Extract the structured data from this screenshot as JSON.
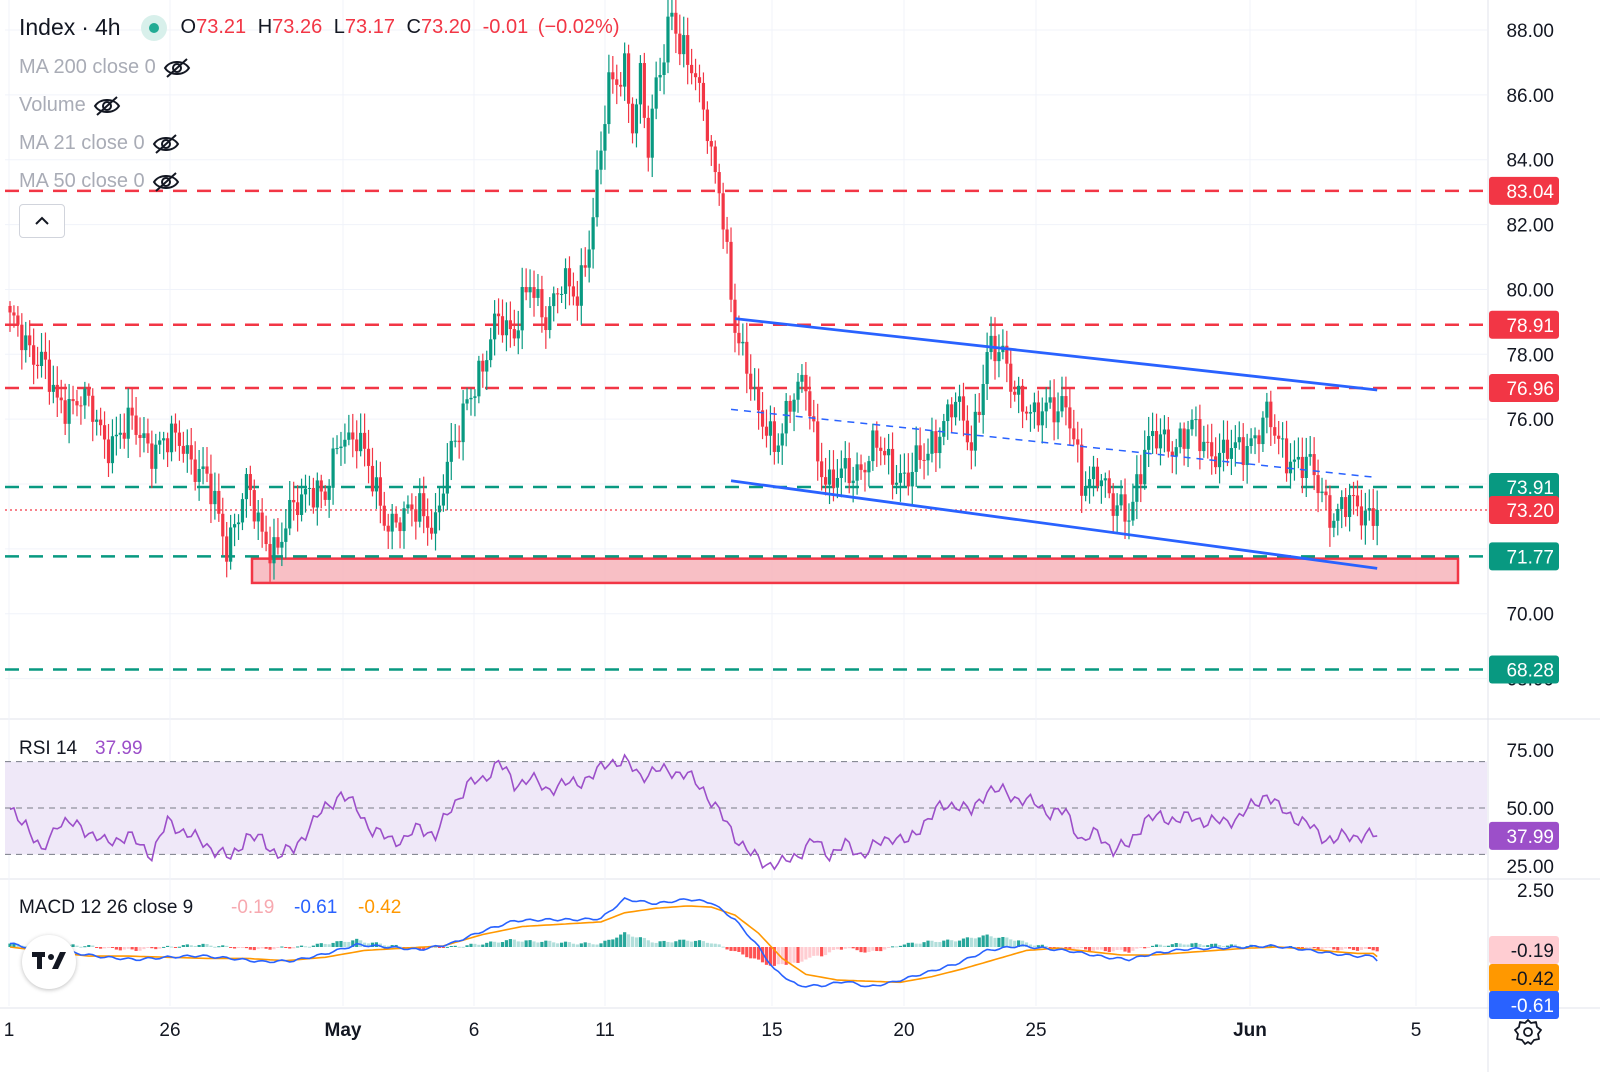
{
  "header": {
    "symbol": "Index",
    "separator": "·",
    "interval": "4h",
    "open_label": "O",
    "open": "73.21",
    "high_label": "H",
    "high": "73.26",
    "low_label": "L",
    "low": "73.17",
    "close_label": "C",
    "close": "73.20",
    "change": "-0.01",
    "change_pct": "(−0.02%)"
  },
  "indicators_hidden": [
    {
      "label": "MA 200 close 0",
      "icon": "eye-off-icon"
    },
    {
      "label": "Volume",
      "icon": "eye-off-icon"
    },
    {
      "label": "MA 21 close 0",
      "icon": "eye-off-icon"
    },
    {
      "label": "MA 50 close 0",
      "icon": "eye-off-icon"
    }
  ],
  "colors": {
    "up": "#089981",
    "down": "#f23645",
    "level_red": "#f23645",
    "level_green": "#089981",
    "trend": "#2962ff",
    "zone_fill": "#f7b4bb",
    "rsi": "#9c4fc9",
    "rsi_band": "#efe8f8",
    "macd": "#2962ff",
    "signal": "#ff9800",
    "hist_up_strong": "#26a69a",
    "hist_up_weak": "#b2dfdb",
    "hist_down_strong": "#ff5252",
    "hist_down_weak": "#ffcdd2"
  },
  "chart_data": [
    {
      "type": "candlestick",
      "title": "Index · 4h",
      "ylim": [
        67.8,
        88.8
      ],
      "y_ticks": [
        "88.00",
        "86.00",
        "84.00",
        "82.00",
        "80.00",
        "78.00",
        "76.00",
        "74.00",
        "72.00",
        "70.00",
        "68.00"
      ],
      "x_ticks": [
        "1",
        "26",
        "May",
        "6",
        "11",
        "15",
        "20",
        "25",
        "Jun",
        "5"
      ],
      "horizontal_levels": [
        {
          "value": 83.04,
          "label": "83.04",
          "style": "dashed",
          "color": "red"
        },
        {
          "value": 78.91,
          "label": "78.91",
          "style": "dashed",
          "color": "red"
        },
        {
          "value": 76.96,
          "label": "76.96",
          "style": "dashed",
          "color": "red"
        },
        {
          "value": 73.91,
          "label": "73.91",
          "style": "dashed",
          "color": "green"
        },
        {
          "value": 73.2,
          "label": "73.20",
          "style": "dotted",
          "color": "red"
        },
        {
          "value": 71.77,
          "label": "71.77",
          "style": "dashed",
          "color": "green"
        },
        {
          "value": 68.28,
          "label": "68.28",
          "style": "dashed",
          "color": "green"
        }
      ],
      "support_zone": {
        "from": 70.95,
        "to": 71.7
      },
      "trendlines": [
        {
          "style": "solid",
          "from": {
            "x_index": 184,
            "y": 79.1
          },
          "to": {
            "x_index": 347,
            "y": 76.9
          }
        },
        {
          "style": "dashed",
          "from": {
            "x_index": 183,
            "y": 76.3
          },
          "to": {
            "x_index": 347,
            "y": 74.2
          }
        },
        {
          "style": "solid",
          "from": {
            "x_index": 183,
            "y": 74.1
          },
          "to": {
            "x_index": 347,
            "y": 71.4
          }
        }
      ],
      "anchors": [
        [
          0,
          78.9
        ],
        [
          8,
          77.9
        ],
        [
          12,
          76.3
        ],
        [
          18,
          76.8
        ],
        [
          24,
          75.3
        ],
        [
          30,
          75.8
        ],
        [
          36,
          75.2
        ],
        [
          44,
          75.3
        ],
        [
          50,
          74.0
        ],
        [
          55,
          72.2
        ],
        [
          60,
          73.8
        ],
        [
          64,
          72.5
        ],
        [
          68,
          72.0
        ],
        [
          72,
          73.2
        ],
        [
          76,
          74.1
        ],
        [
          80,
          73.4
        ],
        [
          84,
          75.6
        ],
        [
          88,
          75.5
        ],
        [
          92,
          74.0
        ],
        [
          96,
          72.9
        ],
        [
          100,
          72.8
        ],
        [
          104,
          73.4
        ],
        [
          108,
          72.7
        ],
        [
          112,
          74.9
        ],
        [
          116,
          76.8
        ],
        [
          120,
          77.3
        ],
        [
          124,
          79.4
        ],
        [
          128,
          78.6
        ],
        [
          132,
          80.1
        ],
        [
          136,
          79.3
        ],
        [
          140,
          80.0
        ],
        [
          144,
          79.9
        ],
        [
          148,
          82.2
        ],
        [
          152,
          86.2
        ],
        [
          156,
          87.0
        ],
        [
          158,
          85.0
        ],
        [
          160,
          86.3
        ],
        [
          162,
          84.2
        ],
        [
          164,
          86.5
        ],
        [
          168,
          88.6
        ],
        [
          170,
          87.2
        ],
        [
          173,
          86.9
        ],
        [
          176,
          86.0
        ],
        [
          178,
          84.0
        ],
        [
          180,
          82.9
        ],
        [
          182,
          80.8
        ],
        [
          184,
          79.0
        ],
        [
          187,
          77.8
        ],
        [
          190,
          75.9
        ],
        [
          194,
          75.3
        ],
        [
          198,
          76.5
        ],
        [
          202,
          77.0
        ],
        [
          205,
          75.0
        ],
        [
          208,
          73.9
        ],
        [
          212,
          74.3
        ],
        [
          216,
          74.6
        ],
        [
          220,
          75.1
        ],
        [
          224,
          74.5
        ],
        [
          228,
          74.2
        ],
        [
          232,
          74.8
        ],
        [
          236,
          75.8
        ],
        [
          240,
          76.4
        ],
        [
          244,
          75.3
        ],
        [
          248,
          78.0
        ],
        [
          252,
          77.9
        ],
        [
          256,
          76.8
        ],
        [
          260,
          75.8
        ],
        [
          264,
          76.6
        ],
        [
          268,
          76.4
        ],
        [
          272,
          73.9
        ],
        [
          276,
          74.6
        ],
        [
          280,
          73.1
        ],
        [
          284,
          73.2
        ],
        [
          288,
          75.0
        ],
        [
          292,
          75.4
        ],
        [
          296,
          75.3
        ],
        [
          300,
          75.6
        ],
        [
          304,
          75.2
        ],
        [
          308,
          74.9
        ],
        [
          312,
          75.0
        ],
        [
          316,
          75.6
        ],
        [
          319,
          76.0
        ],
        [
          322,
          75.2
        ],
        [
          326,
          74.8
        ],
        [
          330,
          74.4
        ],
        [
          333,
          73.7
        ],
        [
          336,
          73.1
        ],
        [
          339,
          73.3
        ],
        [
          342,
          73.2
        ]
      ]
    },
    {
      "type": "line",
      "title": "RSI 14",
      "series": [
        {
          "name": "RSI",
          "last_value": 37.99
        }
      ],
      "ylim": [
        25,
        75
      ],
      "y_ticks": [
        "75.00",
        "50.00",
        "25.00"
      ],
      "bands": [
        70,
        50,
        30
      ],
      "last_value_label": "37.99",
      "anchors": [
        [
          0,
          48
        ],
        [
          4,
          44
        ],
        [
          8,
          30
        ],
        [
          12,
          44
        ],
        [
          18,
          42
        ],
        [
          24,
          35
        ],
        [
          30,
          38
        ],
        [
          36,
          30
        ],
        [
          40,
          44
        ],
        [
          46,
          38
        ],
        [
          52,
          32
        ],
        [
          56,
          28
        ],
        [
          60,
          38
        ],
        [
          64,
          36
        ],
        [
          68,
          30
        ],
        [
          72,
          32
        ],
        [
          76,
          42
        ],
        [
          80,
          50
        ],
        [
          84,
          56
        ],
        [
          88,
          50
        ],
        [
          92,
          40
        ],
        [
          96,
          37
        ],
        [
          100,
          36
        ],
        [
          104,
          42
        ],
        [
          108,
          38
        ],
        [
          112,
          50
        ],
        [
          116,
          60
        ],
        [
          120,
          62
        ],
        [
          124,
          70
        ],
        [
          128,
          60
        ],
        [
          132,
          63
        ],
        [
          136,
          58
        ],
        [
          140,
          60
        ],
        [
          144,
          61
        ],
        [
          148,
          64
        ],
        [
          152,
          70
        ],
        [
          156,
          70
        ],
        [
          160,
          64
        ],
        [
          164,
          66
        ],
        [
          168,
          66
        ],
        [
          172,
          64
        ],
        [
          176,
          58
        ],
        [
          180,
          48
        ],
        [
          184,
          38
        ],
        [
          188,
          30
        ],
        [
          192,
          26
        ],
        [
          196,
          26
        ],
        [
          200,
          30
        ],
        [
          204,
          36
        ],
        [
          208,
          30
        ],
        [
          212,
          34
        ],
        [
          216,
          30
        ],
        [
          220,
          34
        ],
        [
          224,
          38
        ],
        [
          228,
          35
        ],
        [
          232,
          44
        ],
        [
          236,
          50
        ],
        [
          240,
          52
        ],
        [
          244,
          48
        ],
        [
          248,
          58
        ],
        [
          252,
          57
        ],
        [
          256,
          54
        ],
        [
          260,
          52
        ],
        [
          264,
          48
        ],
        [
          268,
          48
        ],
        [
          272,
          36
        ],
        [
          276,
          39
        ],
        [
          280,
          32
        ],
        [
          284,
          34
        ],
        [
          288,
          45
        ],
        [
          292,
          46
        ],
        [
          296,
          45
        ],
        [
          300,
          46
        ],
        [
          304,
          44
        ],
        [
          308,
          44
        ],
        [
          312,
          46
        ],
        [
          316,
          52
        ],
        [
          319,
          56
        ],
        [
          322,
          50
        ],
        [
          326,
          46
        ],
        [
          330,
          42
        ],
        [
          333,
          38
        ],
        [
          336,
          36
        ],
        [
          339,
          38
        ],
        [
          342,
          38
        ]
      ]
    },
    {
      "type": "line+histogram",
      "title": "MACD 12 26 close 9",
      "values_shown": {
        "histogram": "-0.19",
        "macd": "-0.61",
        "signal": "-0.42"
      },
      "ylim": [
        -1.9,
        2.5
      ],
      "y_ticks": [
        "2.50"
      ],
      "series": [
        {
          "name": "MACD",
          "last_value": -0.61
        },
        {
          "name": "Signal",
          "last_value": -0.42
        },
        {
          "name": "Histogram",
          "last_value": -0.19
        }
      ],
      "macd_anchors": [
        [
          0,
          0.15
        ],
        [
          8,
          -0.15
        ],
        [
          16,
          -0.25
        ],
        [
          24,
          -0.45
        ],
        [
          32,
          -0.55
        ],
        [
          40,
          -0.45
        ],
        [
          48,
          -0.38
        ],
        [
          56,
          -0.5
        ],
        [
          64,
          -0.65
        ],
        [
          72,
          -0.6
        ],
        [
          80,
          -0.3
        ],
        [
          88,
          0.1
        ],
        [
          96,
          0.0
        ],
        [
          104,
          -0.12
        ],
        [
          112,
          0.15
        ],
        [
          120,
          0.7
        ],
        [
          128,
          1.15
        ],
        [
          136,
          1.2
        ],
        [
          144,
          1.2
        ],
        [
          150,
          1.25
        ],
        [
          156,
          2.1
        ],
        [
          164,
          1.9
        ],
        [
          172,
          2.1
        ],
        [
          178,
          1.95
        ],
        [
          184,
          1.2
        ],
        [
          190,
          0.0
        ],
        [
          194,
          -1.0
        ],
        [
          200,
          -1.7
        ],
        [
          206,
          -1.7
        ],
        [
          212,
          -1.5
        ],
        [
          218,
          -1.75
        ],
        [
          224,
          -1.55
        ],
        [
          232,
          -1.15
        ],
        [
          240,
          -0.75
        ],
        [
          248,
          -0.15
        ],
        [
          256,
          0.05
        ],
        [
          262,
          -0.05
        ],
        [
          270,
          -0.2
        ],
        [
          278,
          -0.45
        ],
        [
          284,
          -0.55
        ],
        [
          290,
          -0.3
        ],
        [
          298,
          -0.1
        ],
        [
          306,
          -0.05
        ],
        [
          314,
          0.0
        ],
        [
          320,
          0.05
        ],
        [
          328,
          -0.1
        ],
        [
          336,
          -0.3
        ],
        [
          342,
          -0.4
        ]
      ],
      "signal_anchors": [
        [
          0,
          0.0
        ],
        [
          10,
          -0.2
        ],
        [
          20,
          -0.4
        ],
        [
          30,
          -0.4
        ],
        [
          40,
          -0.45
        ],
        [
          50,
          -0.5
        ],
        [
          60,
          -0.5
        ],
        [
          70,
          -0.6
        ],
        [
          80,
          -0.45
        ],
        [
          90,
          -0.15
        ],
        [
          100,
          -0.05
        ],
        [
          110,
          0.05
        ],
        [
          120,
          0.55
        ],
        [
          130,
          0.9
        ],
        [
          140,
          1.0
        ],
        [
          150,
          1.1
        ],
        [
          156,
          1.5
        ],
        [
          164,
          1.7
        ],
        [
          172,
          1.8
        ],
        [
          178,
          1.75
        ],
        [
          184,
          1.4
        ],
        [
          190,
          0.6
        ],
        [
          196,
          -0.5
        ],
        [
          202,
          -1.2
        ],
        [
          210,
          -1.45
        ],
        [
          218,
          -1.5
        ],
        [
          226,
          -1.55
        ],
        [
          234,
          -1.3
        ],
        [
          242,
          -0.95
        ],
        [
          250,
          -0.55
        ],
        [
          258,
          -0.15
        ],
        [
          266,
          -0.05
        ],
        [
          274,
          -0.2
        ],
        [
          282,
          -0.35
        ],
        [
          290,
          -0.35
        ],
        [
          298,
          -0.25
        ],
        [
          306,
          -0.15
        ],
        [
          314,
          -0.05
        ],
        [
          322,
          0.0
        ],
        [
          330,
          -0.1
        ],
        [
          336,
          -0.2
        ],
        [
          342,
          -0.28
        ]
      ]
    }
  ]
}
